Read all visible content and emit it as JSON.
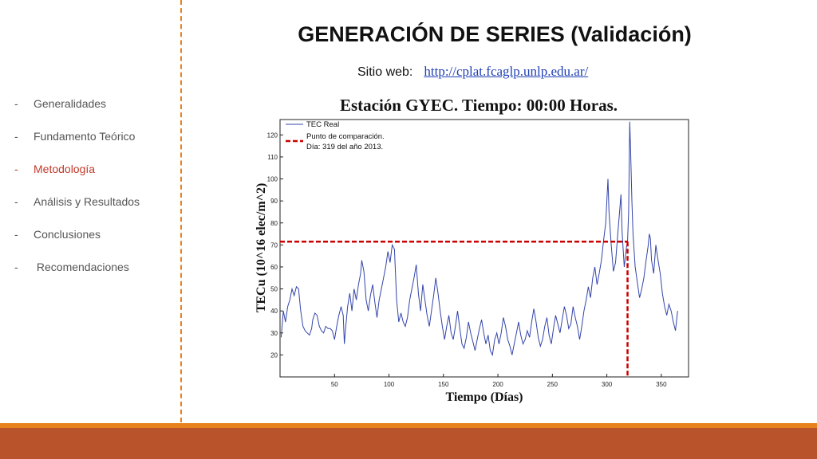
{
  "sidebar": {
    "items": [
      {
        "label": "Generalidades",
        "active": false
      },
      {
        "label": "Fundamento Teórico",
        "active": false
      },
      {
        "label": "Metodología",
        "active": true
      },
      {
        "label": "Análisis y Resultados",
        "active": false
      },
      {
        "label": "Conclusiones",
        "active": false
      },
      {
        "label": " Recomendaciones",
        "active": false
      }
    ]
  },
  "header": {
    "title": "GENERACIÓN DE SERIES (Validación)",
    "site_label": "Sitio web:",
    "site_url": "http://cplat.fcaglp.unlp.edu.ar/"
  },
  "colors": {
    "accent": "#e8821e",
    "footer": "#b8532c",
    "active": "#c0392b",
    "series": "#3344aa",
    "marker": "#cc0000"
  },
  "chart_data": {
    "type": "line",
    "title": "Estación GYEC. Tiempo: 00:00 Horas.",
    "xlabel": "Tiempo (Días)",
    "ylabel": "TECu (10^16 elec/m^2)",
    "xlim": [
      0,
      375
    ],
    "ylim": [
      10,
      127
    ],
    "xticks": [
      50,
      100,
      150,
      200,
      250,
      300,
      350
    ],
    "yticks": [
      20,
      30,
      40,
      50,
      60,
      70,
      80,
      90,
      100,
      110,
      120
    ],
    "legend": {
      "placement": "top-left",
      "entries": [
        {
          "label": "TEC Real",
          "style": "solid"
        },
        {
          "label": "Punto de comparación.",
          "style": "dashed"
        },
        {
          "label": "Día: 319 del año 2013.",
          "style": "none"
        }
      ]
    },
    "series": [
      {
        "name": "TEC Real",
        "points": [
          [
            1,
            28
          ],
          [
            3,
            40
          ],
          [
            5,
            35
          ],
          [
            7,
            42
          ],
          [
            9,
            45
          ],
          [
            11,
            50
          ],
          [
            13,
            47
          ],
          [
            15,
            51
          ],
          [
            17,
            50
          ],
          [
            19,
            40
          ],
          [
            21,
            33
          ],
          [
            23,
            31
          ],
          [
            25,
            30
          ],
          [
            27,
            29
          ],
          [
            29,
            32
          ],
          [
            30,
            36
          ],
          [
            32,
            39
          ],
          [
            34,
            38
          ],
          [
            36,
            33
          ],
          [
            38,
            31
          ],
          [
            40,
            30
          ],
          [
            42,
            33
          ],
          [
            44,
            32
          ],
          [
            46,
            32
          ],
          [
            48,
            31
          ],
          [
            50,
            27
          ],
          [
            52,
            33
          ],
          [
            54,
            38
          ],
          [
            56,
            42
          ],
          [
            58,
            38
          ],
          [
            59,
            25
          ],
          [
            60,
            31
          ],
          [
            62,
            42
          ],
          [
            64,
            48
          ],
          [
            66,
            40
          ],
          [
            68,
            50
          ],
          [
            70,
            45
          ],
          [
            72,
            52
          ],
          [
            74,
            57
          ],
          [
            75,
            63
          ],
          [
            77,
            58
          ],
          [
            79,
            45
          ],
          [
            81,
            40
          ],
          [
            83,
            47
          ],
          [
            85,
            52
          ],
          [
            87,
            44
          ],
          [
            89,
            37
          ],
          [
            91,
            45
          ],
          [
            93,
            50
          ],
          [
            95,
            55
          ],
          [
            97,
            60
          ],
          [
            99,
            67
          ],
          [
            101,
            62
          ],
          [
            103,
            70
          ],
          [
            105,
            68
          ],
          [
            107,
            45
          ],
          [
            109,
            35
          ],
          [
            111,
            39
          ],
          [
            113,
            35
          ],
          [
            115,
            33
          ],
          [
            117,
            37
          ],
          [
            119,
            45
          ],
          [
            121,
            50
          ],
          [
            123,
            55
          ],
          [
            125,
            61
          ],
          [
            127,
            48
          ],
          [
            129,
            40
          ],
          [
            131,
            52
          ],
          [
            133,
            45
          ],
          [
            135,
            38
          ],
          [
            137,
            33
          ],
          [
            139,
            40
          ],
          [
            141,
            47
          ],
          [
            143,
            55
          ],
          [
            145,
            48
          ],
          [
            147,
            40
          ],
          [
            149,
            33
          ],
          [
            151,
            27
          ],
          [
            153,
            33
          ],
          [
            155,
            38
          ],
          [
            157,
            30
          ],
          [
            159,
            27
          ],
          [
            161,
            33
          ],
          [
            163,
            40
          ],
          [
            165,
            32
          ],
          [
            167,
            25
          ],
          [
            169,
            23
          ],
          [
            171,
            28
          ],
          [
            173,
            35
          ],
          [
            175,
            30
          ],
          [
            177,
            26
          ],
          [
            179,
            22
          ],
          [
            181,
            27
          ],
          [
            183,
            32
          ],
          [
            185,
            36
          ],
          [
            187,
            30
          ],
          [
            189,
            25
          ],
          [
            191,
            29
          ],
          [
            193,
            22
          ],
          [
            195,
            20
          ],
          [
            197,
            27
          ],
          [
            199,
            30
          ],
          [
            201,
            25
          ],
          [
            203,
            30
          ],
          [
            205,
            37
          ],
          [
            207,
            33
          ],
          [
            209,
            27
          ],
          [
            211,
            24
          ],
          [
            213,
            20
          ],
          [
            215,
            25
          ],
          [
            217,
            30
          ],
          [
            219,
            35
          ],
          [
            221,
            29
          ],
          [
            223,
            25
          ],
          [
            225,
            27
          ],
          [
            227,
            31
          ],
          [
            229,
            28
          ],
          [
            231,
            35
          ],
          [
            233,
            41
          ],
          [
            235,
            35
          ],
          [
            237,
            28
          ],
          [
            239,
            24
          ],
          [
            241,
            27
          ],
          [
            243,
            33
          ],
          [
            245,
            37
          ],
          [
            247,
            29
          ],
          [
            249,
            25
          ],
          [
            251,
            32
          ],
          [
            253,
            38
          ],
          [
            255,
            34
          ],
          [
            257,
            30
          ],
          [
            259,
            36
          ],
          [
            261,
            42
          ],
          [
            263,
            38
          ],
          [
            265,
            32
          ],
          [
            267,
            34
          ],
          [
            269,
            42
          ],
          [
            271,
            37
          ],
          [
            273,
            33
          ],
          [
            275,
            27
          ],
          [
            277,
            33
          ],
          [
            279,
            40
          ],
          [
            281,
            45
          ],
          [
            283,
            51
          ],
          [
            285,
            46
          ],
          [
            287,
            55
          ],
          [
            289,
            60
          ],
          [
            291,
            52
          ],
          [
            293,
            57
          ],
          [
            295,
            63
          ],
          [
            297,
            72
          ],
          [
            299,
            80
          ],
          [
            300,
            90
          ],
          [
            301,
            100
          ],
          [
            302,
            85
          ],
          [
            304,
            70
          ],
          [
            306,
            58
          ],
          [
            308,
            62
          ],
          [
            310,
            75
          ],
          [
            312,
            87
          ],
          [
            313,
            93
          ],
          [
            314,
            76
          ],
          [
            316,
            60
          ],
          [
            318,
            69
          ],
          [
            319,
            71
          ],
          [
            320,
            85
          ],
          [
            321,
            126
          ],
          [
            322,
            110
          ],
          [
            323,
            90
          ],
          [
            324,
            75
          ],
          [
            326,
            60
          ],
          [
            328,
            53
          ],
          [
            330,
            46
          ],
          [
            332,
            50
          ],
          [
            334,
            55
          ],
          [
            336,
            63
          ],
          [
            338,
            70
          ],
          [
            339,
            75
          ],
          [
            340,
            73
          ],
          [
            341,
            63
          ],
          [
            343,
            57
          ],
          [
            345,
            70
          ],
          [
            347,
            63
          ],
          [
            349,
            57
          ],
          [
            351,
            48
          ],
          [
            353,
            42
          ],
          [
            355,
            38
          ],
          [
            357,
            43
          ],
          [
            359,
            40
          ],
          [
            361,
            35
          ],
          [
            363,
            31
          ],
          [
            365,
            40
          ]
        ]
      }
    ],
    "reference_point": {
      "x": 319,
      "y": 71.5,
      "label": "Día: 319 del año 2013."
    }
  }
}
